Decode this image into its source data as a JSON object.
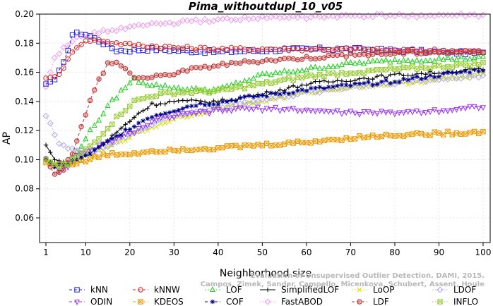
{
  "chart_data": {
    "type": "line",
    "title": "Pima_withoutdupl_10_v05",
    "xlabel": "Neighborhood size",
    "ylabel": "AP",
    "xlim": [
      1,
      100
    ],
    "ylim": [
      0.045,
      0.2
    ],
    "x_ticks": [
      "1",
      "10",
      "20",
      "30",
      "40",
      "50",
      "60",
      "70",
      "80",
      "90",
      "100"
    ],
    "y_ticks": [
      "0.06",
      "0.08",
      "0.10",
      "0.12",
      "0.14",
      "0.16",
      "0.18",
      "0.20"
    ],
    "grid": true,
    "legend_position": "bottom",
    "watermark_lines": [
      "Evaluation of Unsupervised Outlier Detection. DAMI, 2015.",
      "Campos, Zimek, Sander, Campello, Micenkova, Schubert, Assent, Houle"
    ],
    "series": [
      {
        "name": "kNN",
        "color": "#2222dd",
        "marker": "square",
        "line": "dashed",
        "keypoints": [
          [
            1,
            0.152
          ],
          [
            3,
            0.155
          ],
          [
            5,
            0.166
          ],
          [
            7,
            0.186
          ],
          [
            9,
            0.187
          ],
          [
            11,
            0.185
          ],
          [
            14,
            0.18
          ],
          [
            17,
            0.175
          ],
          [
            20,
            0.175
          ],
          [
            25,
            0.176
          ],
          [
            30,
            0.175
          ],
          [
            40,
            0.174
          ],
          [
            50,
            0.175
          ],
          [
            60,
            0.176
          ],
          [
            70,
            0.176
          ],
          [
            80,
            0.175
          ],
          [
            90,
            0.174
          ],
          [
            100,
            0.173
          ]
        ]
      },
      {
        "name": "kNNW",
        "color": "#dd2222",
        "marker": "circle",
        "line": "dashed",
        "keypoints": [
          [
            1,
            0.156
          ],
          [
            3,
            0.157
          ],
          [
            5,
            0.162
          ],
          [
            7,
            0.175
          ],
          [
            9,
            0.18
          ],
          [
            11,
            0.182
          ],
          [
            14,
            0.182
          ],
          [
            17,
            0.18
          ],
          [
            20,
            0.179
          ],
          [
            25,
            0.178
          ],
          [
            30,
            0.177
          ],
          [
            40,
            0.176
          ],
          [
            50,
            0.176
          ],
          [
            60,
            0.176
          ],
          [
            70,
            0.176
          ],
          [
            80,
            0.175
          ],
          [
            90,
            0.175
          ],
          [
            100,
            0.174
          ]
        ]
      },
      {
        "name": "LOF",
        "color": "#22cc22",
        "marker": "triangle-up",
        "line": "dotted",
        "keypoints": [
          [
            1,
            0.1
          ],
          [
            4,
            0.094
          ],
          [
            6,
            0.097
          ],
          [
            8,
            0.105
          ],
          [
            10,
            0.115
          ],
          [
            13,
            0.128
          ],
          [
            16,
            0.14
          ],
          [
            19,
            0.15
          ],
          [
            21,
            0.155
          ],
          [
            24,
            0.152
          ],
          [
            28,
            0.15
          ],
          [
            35,
            0.148
          ],
          [
            40,
            0.148
          ],
          [
            50,
            0.158
          ],
          [
            60,
            0.162
          ],
          [
            70,
            0.166
          ],
          [
            80,
            0.168
          ],
          [
            90,
            0.169
          ],
          [
            100,
            0.17
          ]
        ]
      },
      {
        "name": "SimplifiedLOF",
        "color": "#000000",
        "marker": "plus",
        "line": "solid",
        "keypoints": [
          [
            1,
            0.11
          ],
          [
            3,
            0.1
          ],
          [
            5,
            0.098
          ],
          [
            8,
            0.1
          ],
          [
            10,
            0.103
          ],
          [
            13,
            0.108
          ],
          [
            16,
            0.116
          ],
          [
            19,
            0.124
          ],
          [
            22,
            0.132
          ],
          [
            25,
            0.138
          ],
          [
            30,
            0.14
          ],
          [
            35,
            0.14
          ],
          [
            40,
            0.14
          ],
          [
            50,
            0.145
          ],
          [
            60,
            0.152
          ],
          [
            70,
            0.155
          ],
          [
            80,
            0.158
          ],
          [
            90,
            0.16
          ],
          [
            100,
            0.162
          ]
        ]
      },
      {
        "name": "LoOP",
        "color": "#dddd00",
        "marker": "x",
        "line": "dotted",
        "keypoints": [
          [
            1,
            0.1
          ],
          [
            3,
            0.096
          ],
          [
            6,
            0.097
          ],
          [
            10,
            0.102
          ],
          [
            15,
            0.108
          ],
          [
            20,
            0.116
          ],
          [
            25,
            0.122
          ],
          [
            30,
            0.128
          ],
          [
            40,
            0.135
          ],
          [
            50,
            0.14
          ],
          [
            60,
            0.146
          ],
          [
            70,
            0.15
          ],
          [
            80,
            0.152
          ],
          [
            90,
            0.155
          ],
          [
            100,
            0.158
          ]
        ]
      },
      {
        "name": "LDOF",
        "color": "#aaaaee",
        "marker": "diamond",
        "line": "dotted",
        "keypoints": [
          [
            1,
            0.13
          ],
          [
            2,
            0.125
          ],
          [
            3,
            0.117
          ],
          [
            4,
            0.112
          ],
          [
            6,
            0.108
          ],
          [
            8,
            0.106
          ],
          [
            10,
            0.105
          ],
          [
            14,
            0.108
          ],
          [
            18,
            0.114
          ],
          [
            22,
            0.12
          ],
          [
            26,
            0.126
          ],
          [
            30,
            0.13
          ],
          [
            40,
            0.136
          ],
          [
            50,
            0.141
          ],
          [
            60,
            0.146
          ],
          [
            70,
            0.15
          ],
          [
            80,
            0.153
          ],
          [
            90,
            0.155
          ],
          [
            100,
            0.158
          ]
        ]
      },
      {
        "name": "ODIN",
        "color": "#9933ee",
        "marker": "triangle-down",
        "line": "dashed",
        "keypoints": [
          [
            1,
            0.1
          ],
          [
            4,
            0.093
          ],
          [
            6,
            0.096
          ],
          [
            8,
            0.102
          ],
          [
            12,
            0.108
          ],
          [
            16,
            0.113
          ],
          [
            20,
            0.118
          ],
          [
            24,
            0.124
          ],
          [
            28,
            0.129
          ],
          [
            35,
            0.132
          ],
          [
            45,
            0.135
          ],
          [
            55,
            0.135
          ],
          [
            65,
            0.133
          ],
          [
            75,
            0.132
          ],
          [
            85,
            0.133
          ],
          [
            95,
            0.135
          ],
          [
            100,
            0.137
          ]
        ]
      },
      {
        "name": "KDEOS",
        "color": "#ee9900",
        "marker": "square-x",
        "line": "dashed",
        "keypoints": [
          [
            1,
            0.098
          ],
          [
            3,
            0.096
          ],
          [
            5,
            0.097
          ],
          [
            8,
            0.098
          ],
          [
            11,
            0.1
          ],
          [
            14,
            0.103
          ],
          [
            17,
            0.104
          ],
          [
            20,
            0.104
          ],
          [
            25,
            0.106
          ],
          [
            30,
            0.107
          ],
          [
            40,
            0.108
          ],
          [
            50,
            0.11
          ],
          [
            60,
            0.112
          ],
          [
            70,
            0.115
          ],
          [
            80,
            0.117
          ],
          [
            90,
            0.118
          ],
          [
            100,
            0.119
          ]
        ]
      },
      {
        "name": "COF",
        "color": "#000088",
        "marker": "asterisk",
        "line": "dashed",
        "keypoints": [
          [
            1,
            0.101
          ],
          [
            3,
            0.095
          ],
          [
            6,
            0.098
          ],
          [
            9,
            0.101
          ],
          [
            12,
            0.106
          ],
          [
            16,
            0.114
          ],
          [
            20,
            0.122
          ],
          [
            25,
            0.13
          ],
          [
            30,
            0.134
          ],
          [
            35,
            0.138
          ],
          [
            40,
            0.139
          ],
          [
            45,
            0.142
          ],
          [
            50,
            0.144
          ],
          [
            60,
            0.148
          ],
          [
            70,
            0.151
          ],
          [
            80,
            0.154
          ],
          [
            90,
            0.158
          ],
          [
            100,
            0.162
          ]
        ]
      },
      {
        "name": "FastABOD",
        "color": "#ee99ee",
        "marker": "diamond",
        "line": "dotted",
        "keypoints": [
          [
            1,
            0.15
          ],
          [
            3,
            0.17
          ],
          [
            5,
            0.178
          ],
          [
            8,
            0.183
          ],
          [
            12,
            0.187
          ],
          [
            18,
            0.19
          ],
          [
            25,
            0.193
          ],
          [
            35,
            0.195
          ],
          [
            45,
            0.197
          ],
          [
            60,
            0.198
          ],
          [
            80,
            0.199
          ],
          [
            100,
            0.199
          ]
        ]
      },
      {
        "name": "LDF",
        "color": "#bb3333",
        "marker": "circle-dot",
        "line": "dashed",
        "keypoints": [
          [
            1,
            0.1
          ],
          [
            3,
            0.09
          ],
          [
            5,
            0.094
          ],
          [
            7,
            0.105
          ],
          [
            9,
            0.122
          ],
          [
            11,
            0.14
          ],
          [
            13,
            0.155
          ],
          [
            15,
            0.166
          ],
          [
            17,
            0.167
          ],
          [
            19,
            0.162
          ],
          [
            21,
            0.157
          ],
          [
            24,
            0.156
          ],
          [
            28,
            0.158
          ],
          [
            32,
            0.161
          ],
          [
            40,
            0.165
          ],
          [
            50,
            0.168
          ],
          [
            60,
            0.17
          ],
          [
            70,
            0.172
          ],
          [
            80,
            0.173
          ],
          [
            90,
            0.174
          ],
          [
            100,
            0.174
          ]
        ]
      },
      {
        "name": "INFLO",
        "color": "#99cc33",
        "marker": "square-x",
        "line": "dotted",
        "keypoints": [
          [
            1,
            0.1
          ],
          [
            4,
            0.095
          ],
          [
            6,
            0.097
          ],
          [
            9,
            0.104
          ],
          [
            12,
            0.112
          ],
          [
            15,
            0.122
          ],
          [
            18,
            0.132
          ],
          [
            21,
            0.14
          ],
          [
            25,
            0.144
          ],
          [
            30,
            0.146
          ],
          [
            40,
            0.147
          ],
          [
            50,
            0.152
          ],
          [
            60,
            0.157
          ],
          [
            70,
            0.16
          ],
          [
            80,
            0.162
          ],
          [
            90,
            0.164
          ],
          [
            100,
            0.166
          ]
        ]
      }
    ]
  }
}
